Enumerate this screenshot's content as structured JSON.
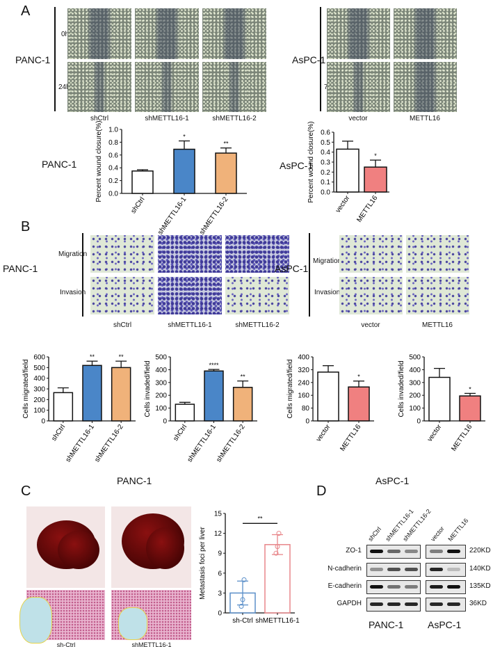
{
  "panels": {
    "A": "A",
    "B": "B",
    "C": "C",
    "D": "D"
  },
  "cell_lines": {
    "panc1": "PANC-1",
    "aspc1": "AsPC-1"
  },
  "panelA": {
    "time_panc": [
      "0h",
      "24h"
    ],
    "time_aspc": [
      "0h",
      "72h"
    ],
    "groups_panc": [
      "shCtrl",
      "shMETTL16-1",
      "shMETTL16-2"
    ],
    "groups_aspc": [
      "vector",
      "METTL16"
    ]
  },
  "panelB": {
    "rows": [
      "Migration",
      "Invasion"
    ],
    "groups_panc": [
      "shCtrl",
      "shMETTL16-1",
      "shMETTL16-2"
    ],
    "groups_aspc": [
      "vector",
      "METTL16"
    ]
  },
  "panelC": {
    "groups": [
      "sh-Ctrl",
      "shMETTL16-1"
    ]
  },
  "panelD": {
    "lanes_panc": [
      "shCtrl",
      "shMETTL16-1",
      "shMETTL16-2"
    ],
    "lanes_aspc": [
      "vector",
      "METTL16"
    ],
    "proteins": [
      "ZO-1",
      "N-cadherin",
      "E-cadherin",
      "GAPDH"
    ],
    "sizes": [
      "220KD",
      "140KD",
      "135KD",
      "36KD"
    ]
  },
  "colors": {
    "white": "#ffffff",
    "blue": "#4a86c8",
    "orange": "#f0b27a",
    "red": "#f08080",
    "c_blue": "#5b8fc9",
    "c_pink": "#e8868a"
  },
  "chart_data": [
    {
      "id": "A1",
      "type": "bar",
      "title": "",
      "ylabel": "Percent wound closure(%)",
      "ylim": [
        0,
        1.0
      ],
      "yticks": [
        "0.0",
        "0.2",
        "0.4",
        "0.6",
        "0.8",
        "1.0"
      ],
      "categories": [
        "shCtrl",
        "shMETTL16-1",
        "shMETTL16-2"
      ],
      "values": [
        0.35,
        0.69,
        0.63
      ],
      "errors": [
        0.02,
        0.13,
        0.08
      ],
      "significance": [
        "",
        "*",
        "**"
      ],
      "colors": [
        "#ffffff",
        "#4a86c8",
        "#f0b27a"
      ]
    },
    {
      "id": "A2",
      "type": "bar",
      "ylabel": "Percent wound closure(%)",
      "ylim": [
        0,
        0.6
      ],
      "yticks": [
        "0.0",
        "0.1",
        "0.2",
        "0.3",
        "0.4",
        "0.5",
        "0.6"
      ],
      "categories": [
        "vector",
        "METTL16"
      ],
      "values": [
        0.43,
        0.25
      ],
      "errors": [
        0.08,
        0.07
      ],
      "significance": [
        "",
        "*"
      ],
      "colors": [
        "#ffffff",
        "#f08080"
      ]
    },
    {
      "id": "B1",
      "type": "bar",
      "ylabel": "Cells migrated/field",
      "ylim": [
        0,
        600
      ],
      "yticks": [
        "0",
        "100",
        "200",
        "300",
        "400",
        "500",
        "600"
      ],
      "categories": [
        "shCtrl",
        "shMETTL16-1",
        "shMETTL16-2"
      ],
      "values": [
        265,
        520,
        500
      ],
      "errors": [
        45,
        40,
        60
      ],
      "significance": [
        "",
        "**",
        "**"
      ],
      "colors": [
        "#ffffff",
        "#4a86c8",
        "#f0b27a"
      ]
    },
    {
      "id": "B2",
      "type": "bar",
      "ylabel": "Cells invaded/field",
      "ylim": [
        0,
        500
      ],
      "yticks": [
        "0",
        "100",
        "200",
        "300",
        "400",
        "500"
      ],
      "categories": [
        "shCtrl",
        "shMETTL16-1",
        "shMETTL16-2"
      ],
      "values": [
        130,
        390,
        262
      ],
      "errors": [
        15,
        12,
        50
      ],
      "significance": [
        "",
        "****",
        "**"
      ],
      "colors": [
        "#ffffff",
        "#4a86c8",
        "#f0b27a"
      ]
    },
    {
      "id": "B3",
      "type": "bar",
      "ylabel": "Cells migrated/field",
      "ylim": [
        0,
        400
      ],
      "yticks": [
        "0",
        "80",
        "160",
        "240",
        "320",
        "400"
      ],
      "categories": [
        "vector",
        "METTL16"
      ],
      "values": [
        305,
        212
      ],
      "errors": [
        40,
        37
      ],
      "significance": [
        "",
        "*"
      ],
      "colors": [
        "#ffffff",
        "#f08080"
      ]
    },
    {
      "id": "B4",
      "type": "bar",
      "ylabel": "Cells invaded/field",
      "ylim": [
        0,
        500
      ],
      "yticks": [
        "0",
        "100",
        "200",
        "300",
        "400",
        "500"
      ],
      "categories": [
        "vector",
        "METTL16"
      ],
      "values": [
        340,
        195
      ],
      "errors": [
        70,
        20
      ],
      "significance": [
        "",
        "*"
      ],
      "colors": [
        "#ffffff",
        "#f08080"
      ]
    },
    {
      "id": "C",
      "type": "bar",
      "ylabel": "Metastasis foci per liver",
      "ylim": [
        0,
        15
      ],
      "yticks": [
        "0",
        "3",
        "6",
        "9",
        "12",
        "15"
      ],
      "categories": [
        "sh-Ctrl",
        "shMETTL16-1"
      ],
      "values": [
        3.0,
        10.3
      ],
      "errors": [
        1.8,
        1.5
      ],
      "points": [
        [
          1,
          2,
          5
        ],
        [
          9,
          10,
          12
        ]
      ],
      "significance_bracket": "**",
      "colors": [
        "#5b8fc9",
        "#e8868a"
      ],
      "outline_only": true
    }
  ]
}
